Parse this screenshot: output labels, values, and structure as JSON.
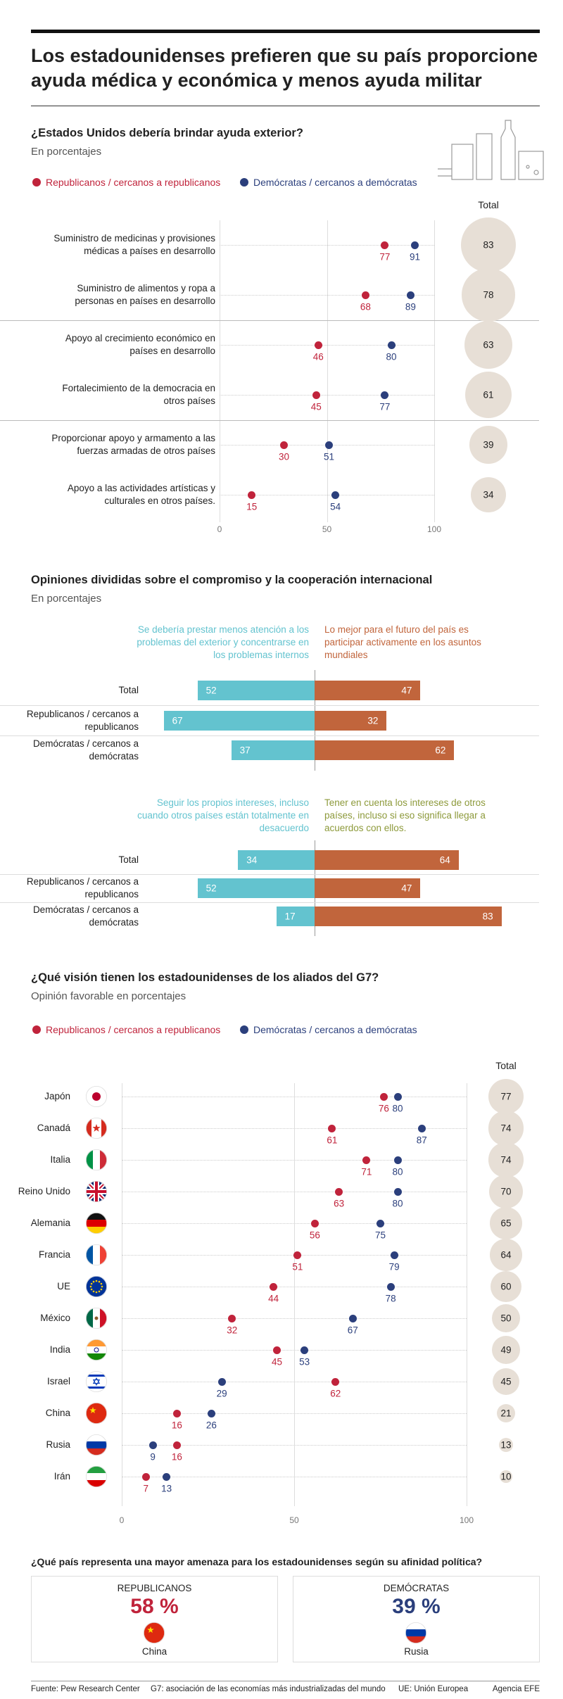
{
  "title": "Los estadounidenses prefieren que su país proporcione ayuda médica y económica y menos ayuda militar",
  "chart_data": [
    {
      "type": "dot",
      "title": "¿Estados Unidos debería brindar ayuda exterior?",
      "subtitle": "En porcentajes",
      "categories": [
        "Suministro de medicinas y provisiones médicas a países en desarrollo",
        "Suministro de alimentos y ropa a personas en países en desarrollo",
        "Apoyo al crecimiento económico en países en desarrollo",
        "Fortalecimiento de la democracia en otros países",
        "Proporcionar apoyo y armamento a las fuerzas armadas de otros países",
        "Apoyo a las actividades artísticas y culturales en otros países."
      ],
      "series": [
        {
          "name": "Republicanos / cercanos a republicanos",
          "color": "#c0233b",
          "values": [
            77,
            68,
            46,
            45,
            30,
            15
          ]
        },
        {
          "name": "Demócratas / cercanos a demócratas",
          "color": "#2b3f7c",
          "values": [
            91,
            89,
            80,
            77,
            51,
            54
          ]
        },
        {
          "name": "Total",
          "color": "#e7dfd6",
          "values": [
            83,
            78,
            63,
            61,
            39,
            34
          ]
        }
      ],
      "xlim": [
        0,
        100
      ],
      "xticks": [
        0,
        50,
        100
      ]
    },
    {
      "type": "diverging_bar",
      "title": "Opiniones divididas sobre el compromiso y la cooperación internacional",
      "subtitle": "En porcentajes",
      "panels": [
        {
          "categories": [
            "Total",
            "Republicanos / cercanos a republicanos",
            "Demócratas / cercanos a demócratas"
          ],
          "series": [
            {
              "name": "Se debería prestar menos atención a los problemas del exterior y concentrarse en los problemas internos",
              "color": "#63c3cf",
              "values": [
                52,
                67,
                37
              ]
            },
            {
              "name": "Lo mejor para el futuro del país es participar activamente en los asuntos mundiales",
              "color": "#c1653c",
              "values": [
                47,
                32,
                62
              ]
            }
          ]
        },
        {
          "categories": [
            "Total",
            "Republicanos / cercanos a republicanos",
            "Demócratas / cercanos a demócratas"
          ],
          "series": [
            {
              "name": "Seguir los propios intereses, incluso cuando otros países están totalmente en desacuerdo",
              "color": "#63c3cf",
              "values": [
                34,
                52,
                17
              ]
            },
            {
              "name": "Tener en cuenta los intereses de otros países, incluso si eso significa llegar a acuerdos con ellos.",
              "color": "#c1653c",
              "values": [
                64,
                47,
                83
              ]
            }
          ]
        }
      ]
    },
    {
      "type": "dot",
      "title": "¿Qué visión tienen los estadounidenses de los aliados del G7?",
      "subtitle": "Opinión favorable en porcentajes",
      "categories": [
        "Japón",
        "Canadá",
        "Italia",
        "Reino Unido",
        "Alemania",
        "Francia",
        "UE",
        "México",
        "India",
        "Israel",
        "China",
        "Rusia",
        "Irán"
      ],
      "series": [
        {
          "name": "Republicanos / cercanos a republicanos",
          "color": "#c0233b",
          "values": [
            76,
            61,
            71,
            63,
            56,
            51,
            44,
            32,
            45,
            62,
            16,
            16,
            7
          ]
        },
        {
          "name": "Demócratas / cercanos a demócratas",
          "color": "#2b3f7c",
          "values": [
            80,
            87,
            80,
            80,
            75,
            79,
            78,
            67,
            53,
            29,
            26,
            9,
            13
          ]
        },
        {
          "name": "Total",
          "color": "#e7dfd6",
          "values": [
            77,
            74,
            74,
            70,
            65,
            64,
            60,
            50,
            49,
            45,
            21,
            13,
            10
          ]
        }
      ],
      "xlim": [
        0,
        100
      ],
      "xticks": [
        0,
        50,
        100
      ]
    }
  ],
  "threat": {
    "question": "¿Qué país representa una mayor amenaza para los estadounidenses según su afinidad política?",
    "cards": [
      {
        "party": "REPUBLICANOS",
        "value": 58,
        "value_label": "58 %",
        "country": "China",
        "color": "#c0233b"
      },
      {
        "party": "DEMÓCRATAS",
        "value": 39,
        "value_label": "39 %",
        "country": "Rusia",
        "color": "#2b3f7c"
      }
    ]
  },
  "footer": {
    "source": "Fuente: Pew Research Center",
    "notes": [
      "G7: asociación de las economías más industrializadas del mundo",
      "UE: Unión Europea"
    ],
    "credit": "Agencia EFE"
  }
}
